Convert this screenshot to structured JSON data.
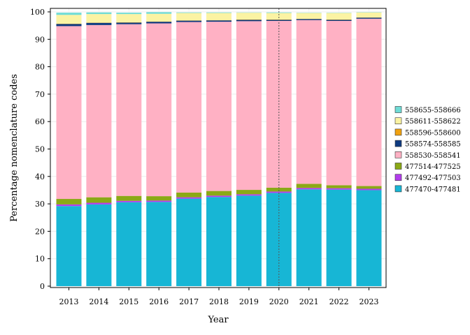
{
  "chart_data": {
    "type": "bar",
    "stacked": true,
    "xlabel": "Year",
    "ylabel": "Percentage nomenclature codes",
    "ylim": [
      0,
      101
    ],
    "yticks": [
      0,
      10,
      20,
      30,
      40,
      50,
      60,
      70,
      80,
      90,
      100
    ],
    "categories": [
      "2013",
      "2014",
      "2015",
      "2016",
      "2017",
      "2018",
      "2019",
      "2020",
      "2021",
      "2022",
      "2023"
    ],
    "reference_line": {
      "x": "2020",
      "style": "dotted"
    },
    "legend_position": "right",
    "series": [
      {
        "name": "477470-477481",
        "color": "#17b6d5",
        "values": [
          29.2,
          29.8,
          30.6,
          30.7,
          31.9,
          32.5,
          33.0,
          34.0,
          35.3,
          35.2,
          35.0
        ]
      },
      {
        "name": "477492-477503",
        "color": "#b33dec",
        "values": [
          0.6,
          0.6,
          0.5,
          0.5,
          0.5,
          0.5,
          0.5,
          0.5,
          0.5,
          0.5,
          0.5
        ]
      },
      {
        "name": "477514-477525",
        "color": "#8ba916",
        "values": [
          2.0,
          2.0,
          1.8,
          1.6,
          1.7,
          1.7,
          1.6,
          1.4,
          1.5,
          1.1,
          1.0
        ]
      },
      {
        "name": "558530-558541",
        "color": "#ffb1c4",
        "values": [
          63.0,
          62.8,
          62.6,
          63.0,
          62.2,
          61.7,
          61.5,
          60.8,
          59.7,
          59.9,
          61.0
        ]
      },
      {
        "name": "558574-558585",
        "color": "#0e3a80",
        "values": [
          0.8,
          0.8,
          0.6,
          0.6,
          0.5,
          0.5,
          0.5,
          0.4,
          0.4,
          0.4,
          0.4
        ]
      },
      {
        "name": "558596-558600",
        "color": "#f0a10f",
        "values": [
          0.1,
          0.1,
          0.1,
          0.1,
          0.1,
          0.1,
          0.1,
          0.1,
          0.1,
          0.1,
          0.1
        ]
      },
      {
        "name": "558611-558622",
        "color": "#fbf3a3",
        "values": [
          3.2,
          3.1,
          3.0,
          2.8,
          2.7,
          2.6,
          2.5,
          2.4,
          2.1,
          2.4,
          1.8
        ]
      },
      {
        "name": "558655-558666",
        "color": "#6fdcd6",
        "values": [
          0.8,
          0.6,
          0.5,
          0.6,
          0.2,
          0.2,
          0.1,
          0.2,
          0.1,
          0.1,
          0.1
        ]
      }
    ]
  }
}
